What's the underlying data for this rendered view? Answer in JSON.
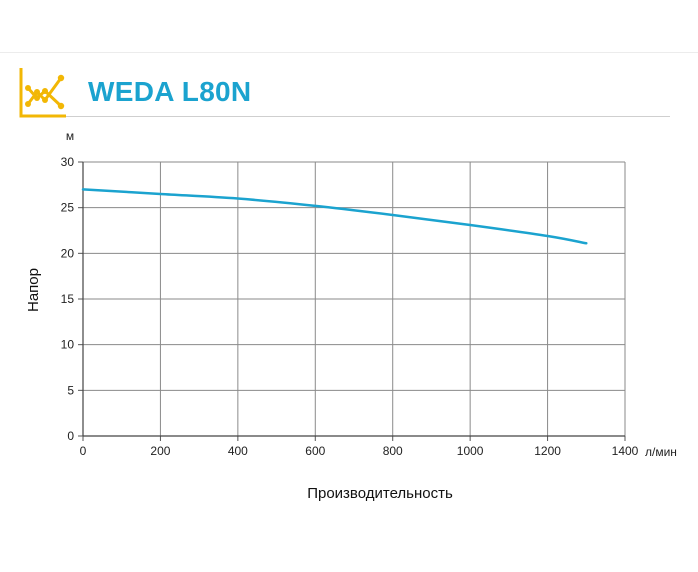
{
  "header": {
    "title": "WEDA L80N",
    "icon": "chart-line-icon",
    "accent_color": "#f2b705",
    "title_color": "#1ba3cf"
  },
  "chart_data": {
    "type": "line",
    "title": "WEDA L80N",
    "xlabel": "Производительность",
    "ylabel": "Напор",
    "x_unit": "л/мин",
    "y_unit": "м",
    "xlim": [
      0,
      1400
    ],
    "ylim": [
      0,
      30
    ],
    "x_ticks": [
      0,
      200,
      400,
      600,
      800,
      1000,
      1200,
      1400
    ],
    "y_ticks": [
      0,
      5,
      10,
      15,
      20,
      25,
      30
    ],
    "grid": true,
    "line_color": "#1ba3cf",
    "series": [
      {
        "x": [
          0,
          200,
          400,
          600,
          800,
          1000,
          1200,
          1300
        ],
        "y": [
          27.0,
          26.5,
          26.0,
          25.2,
          24.2,
          23.1,
          21.9,
          21.1
        ]
      }
    ]
  }
}
